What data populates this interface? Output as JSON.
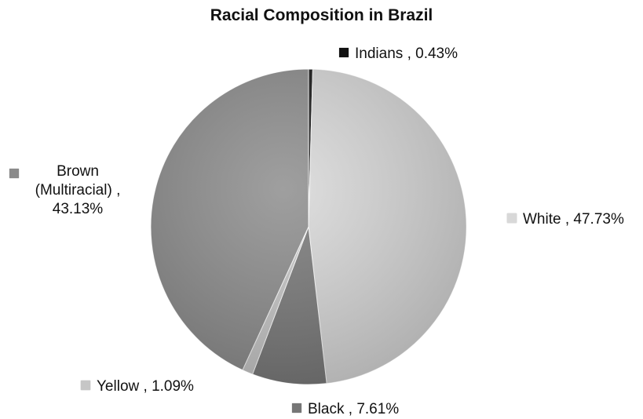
{
  "chart_data": {
    "type": "pie",
    "title": "Racial Composition in Brazil",
    "slices": [
      {
        "name": "Indians",
        "value": 0.43,
        "label": "0.43%",
        "color": "#111111"
      },
      {
        "name": "White",
        "value": 47.73,
        "label": "47.73%",
        "color": "#d8d8d8"
      },
      {
        "name": "Black",
        "value": 7.61,
        "label": "7.61%",
        "color": "#767676"
      },
      {
        "name": "Yellow",
        "value": 1.09,
        "label": "1.09%",
        "color": "#c6c6c6"
      },
      {
        "name": "Brown (Multiracial)",
        "value": 43.13,
        "label": "43.13%",
        "color": "#8a8a8a"
      }
    ],
    "start_angle_deg": 0,
    "direction": "clockwise",
    "legend": "none",
    "data_labels": "outside"
  },
  "labels": {
    "separator": ",",
    "brown_line1": "Brown",
    "brown_line2": "(Multiracial) ,"
  }
}
